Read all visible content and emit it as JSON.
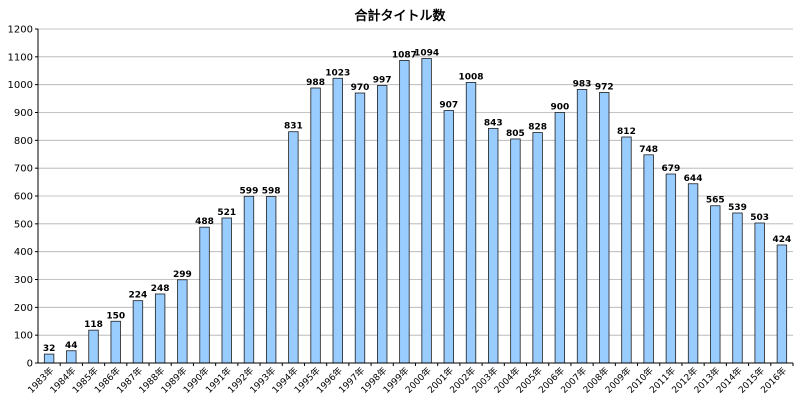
{
  "chart_data": {
    "type": "bar",
    "title": "合計タイトル数",
    "categories": [
      "1983年",
      "1984年",
      "1985年",
      "1986年",
      "1987年",
      "1988年",
      "1989年",
      "1990年",
      "1991年",
      "1992年",
      "1993年",
      "1994年",
      "1995年",
      "1996年",
      "1997年",
      "1998年",
      "1999年",
      "2000年",
      "2001年",
      "2002年",
      "2003年",
      "2004年",
      "2005年",
      "2006年",
      "2007年",
      "2008年",
      "2009年",
      "2010年",
      "2011年",
      "2012年",
      "2013年",
      "2014年",
      "2015年",
      "2016年"
    ],
    "values": [
      32,
      44,
      118,
      150,
      224,
      248,
      299,
      488,
      521,
      599,
      598,
      831,
      988,
      1023,
      970,
      997,
      1087,
      1094,
      907,
      1008,
      843,
      805,
      828,
      900,
      983,
      972,
      812,
      748,
      679,
      644,
      565,
      539,
      503,
      424
    ],
    "xlabel": "",
    "ylabel": "",
    "ylim": [
      0,
      1200
    ],
    "yticks": [
      "0",
      "100",
      "200",
      "300",
      "400",
      "500",
      "600",
      "700",
      "800",
      "900",
      "1000",
      "1100",
      "1200"
    ],
    "grid": true,
    "data_labels": true,
    "bar_color": "#99ccff"
  }
}
